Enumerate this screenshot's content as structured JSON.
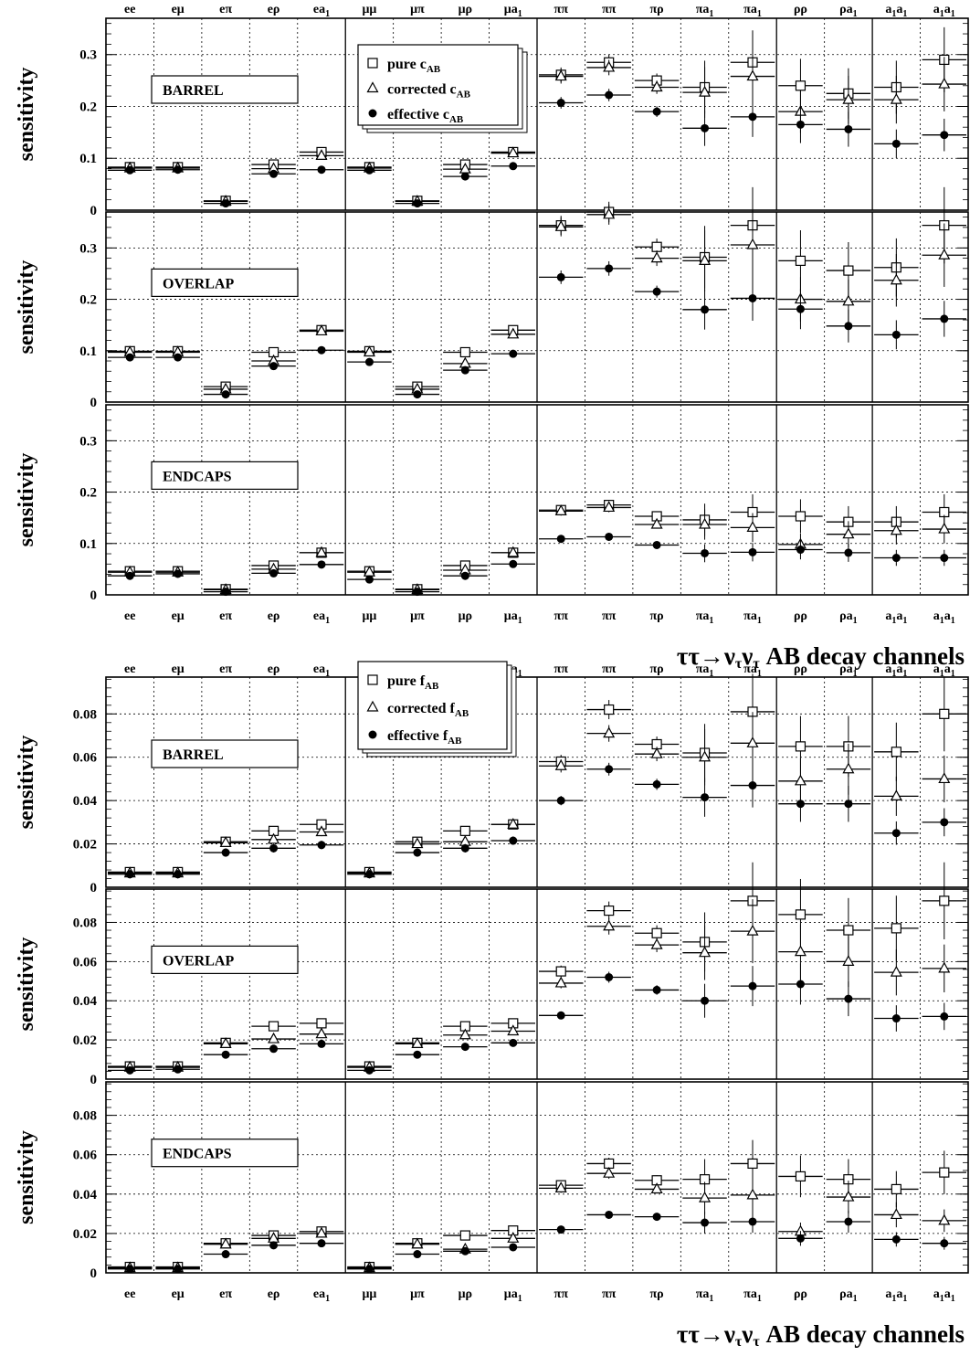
{
  "chart_data": [
    {
      "type": "scatter",
      "title": "",
      "xlabel": "ττ→ν_τν_τ AB  decay channels",
      "ylabel": "sensitivity",
      "categories": [
        "ee",
        "eμ",
        "eπ",
        "eρ",
        "ea_1",
        "μμ",
        "μπ",
        "μρ",
        "μa_1",
        "ππ",
        "ππ",
        "πρ",
        "πa_1",
        "πa_1",
        "ρρ",
        "ρa_1",
        "a_1a_1",
        "a_1a_1"
      ],
      "ylim": [
        0,
        0.37
      ],
      "yticks": [
        "0",
        "0.1",
        "0.2",
        "0.3"
      ],
      "legend": [
        "pure c_AB",
        "corrected c_AB",
        "effective c_AB"
      ],
      "legend_position": "top-center",
      "grid": true,
      "panels": [
        {
          "region": "BARREL",
          "series": [
            {
              "name": "pure c_AB",
              "values": [
                0.083,
                0.083,
                0.018,
                0.088,
                0.112,
                0.083,
                0.018,
                0.088,
                0.112,
                0.261,
                0.285,
                0.25,
                0.237,
                0.285,
                0.24,
                0.225,
                0.237,
                0.29
              ]
            },
            {
              "name": "corrected c_AB",
              "values": [
                0.081,
                0.081,
                0.017,
                0.08,
                0.105,
                0.081,
                0.017,
                0.079,
                0.11,
                0.258,
                0.275,
                0.237,
                0.227,
                0.258,
                0.19,
                0.213,
                0.213,
                0.243
              ]
            },
            {
              "name": "effective c_AB",
              "values": [
                0.077,
                0.078,
                0.013,
                0.07,
                0.078,
                0.077,
                0.013,
                0.065,
                0.085,
                0.207,
                0.222,
                0.19,
                0.158,
                0.18,
                0.165,
                0.156,
                0.128,
                0.145
              ]
            }
          ]
        },
        {
          "region": "OVERLAP",
          "series": [
            {
              "name": "pure c_AB",
              "values": [
                0.099,
                0.099,
                0.03,
                0.097,
                0.14,
                0.099,
                0.03,
                0.097,
                0.14,
                0.344,
                0.37,
                0.302,
                0.282,
                0.344,
                0.275,
                0.256,
                0.262,
                0.344
              ]
            },
            {
              "name": "corrected c_AB",
              "values": [
                0.097,
                0.097,
                0.025,
                0.08,
                0.138,
                0.097,
                0.025,
                0.075,
                0.132,
                0.341,
                0.365,
                0.28,
                0.275,
                0.306,
                0.2,
                0.196,
                0.237,
                0.286
              ]
            },
            {
              "name": "effective c_AB",
              "values": [
                0.087,
                0.087,
                0.015,
                0.07,
                0.101,
                0.078,
                0.015,
                0.062,
                0.094,
                0.243,
                0.26,
                0.215,
                0.18,
                0.202,
                0.181,
                0.148,
                0.131,
                0.162
              ]
            }
          ]
        },
        {
          "region": "ENDCAPS",
          "series": [
            {
              "name": "pure c_AB",
              "values": [
                0.046,
                0.046,
                0.011,
                0.057,
                0.082,
                0.046,
                0.011,
                0.057,
                0.082,
                0.165,
                0.175,
                0.153,
                0.146,
                0.161,
                0.153,
                0.142,
                0.142,
                0.161
              ]
            },
            {
              "name": "corrected c_AB",
              "values": [
                0.044,
                0.044,
                0.01,
                0.05,
                0.082,
                0.044,
                0.01,
                0.048,
                0.082,
                0.163,
                0.17,
                0.137,
                0.137,
                0.131,
                0.098,
                0.118,
                0.125,
                0.128
              ]
            },
            {
              "name": "effective c_AB",
              "values": [
                0.037,
                0.041,
                0.006,
                0.042,
                0.059,
                0.03,
                0.006,
                0.037,
                0.06,
                0.109,
                0.113,
                0.097,
                0.081,
                0.083,
                0.088,
                0.082,
                0.072,
                0.072
              ]
            }
          ]
        }
      ]
    },
    {
      "type": "scatter",
      "title": "",
      "xlabel": "ττ→ν_τν_τ AB  decay channels",
      "ylabel": "sensitivity",
      "categories": [
        "ee",
        "eμ",
        "eπ",
        "eρ",
        "ea_1",
        "μμ",
        "μπ",
        "μρ",
        "μa_1",
        "ππ",
        "ππ",
        "πρ",
        "πa_1",
        "πa_1",
        "ρρ",
        "ρa_1",
        "a_1a_1",
        "a_1a_1"
      ],
      "ylim": [
        0,
        0.097
      ],
      "yticks": [
        "0",
        "0.02",
        "0.04",
        "0.06",
        "0.08"
      ],
      "legend": [
        "pure f_AB",
        "corrected f_AB",
        "effective f_AB"
      ],
      "legend_position": "top-center",
      "grid": true,
      "panels": [
        {
          "region": "BARREL",
          "series": [
            {
              "name": "pure f_AB",
              "values": [
                0.007,
                0.007,
                0.021,
                0.026,
                0.029,
                0.007,
                0.021,
                0.026,
                0.029,
                0.058,
                0.082,
                0.066,
                0.062,
                0.081,
                0.065,
                0.065,
                0.0625,
                0.08
              ]
            },
            {
              "name": "corrected f_AB",
              "values": [
                0.0065,
                0.0065,
                0.0205,
                0.022,
                0.0255,
                0.0065,
                0.02,
                0.021,
                0.029,
                0.056,
                0.071,
                0.0615,
                0.06,
                0.0665,
                0.049,
                0.0545,
                0.042,
                0.05
              ]
            },
            {
              "name": "effective f_AB",
              "values": [
                0.006,
                0.006,
                0.016,
                0.018,
                0.0195,
                0.006,
                0.016,
                0.018,
                0.0215,
                0.04,
                0.0545,
                0.0475,
                0.0415,
                0.047,
                0.0385,
                0.0385,
                0.025,
                0.03
              ]
            }
          ]
        },
        {
          "region": "OVERLAP",
          "series": [
            {
              "name": "pure f_AB",
              "values": [
                0.0065,
                0.0065,
                0.0185,
                0.027,
                0.0285,
                0.0065,
                0.0185,
                0.027,
                0.0285,
                0.055,
                0.086,
                0.0745,
                0.07,
                0.091,
                0.084,
                0.076,
                0.077,
                0.091
              ]
            },
            {
              "name": "corrected f_AB",
              "values": [
                0.006,
                0.006,
                0.018,
                0.0205,
                0.023,
                0.006,
                0.018,
                0.0225,
                0.0245,
                0.049,
                0.078,
                0.0685,
                0.0645,
                0.0755,
                0.065,
                0.06,
                0.0545,
                0.0565
              ]
            },
            {
              "name": "effective f_AB",
              "values": [
                0.0045,
                0.005,
                0.0125,
                0.0155,
                0.018,
                0.0045,
                0.0125,
                0.0165,
                0.0185,
                0.0325,
                0.052,
                0.0455,
                0.04,
                0.0475,
                0.0485,
                0.041,
                0.031,
                0.032
              ]
            }
          ]
        },
        {
          "region": "ENDCAPS",
          "series": [
            {
              "name": "pure f_AB",
              "values": [
                0.003,
                0.003,
                0.015,
                0.019,
                0.021,
                0.003,
                0.015,
                0.019,
                0.0215,
                0.0445,
                0.0555,
                0.047,
                0.0475,
                0.0555,
                0.049,
                0.0475,
                0.0425,
                0.051
              ]
            },
            {
              "name": "corrected f_AB",
              "values": [
                0.0025,
                0.0025,
                0.0145,
                0.0175,
                0.02,
                0.0025,
                0.0145,
                0.012,
                0.0175,
                0.043,
                0.0505,
                0.0425,
                0.038,
                0.0395,
                0.021,
                0.0385,
                0.0295,
                0.0265
              ]
            },
            {
              "name": "effective f_AB",
              "values": [
                0.002,
                0.002,
                0.0095,
                0.014,
                0.015,
                0.002,
                0.0095,
                0.011,
                0.013,
                0.022,
                0.0295,
                0.0285,
                0.0255,
                0.026,
                0.0175,
                0.026,
                0.017,
                0.015
              ]
            }
          ]
        }
      ]
    }
  ]
}
